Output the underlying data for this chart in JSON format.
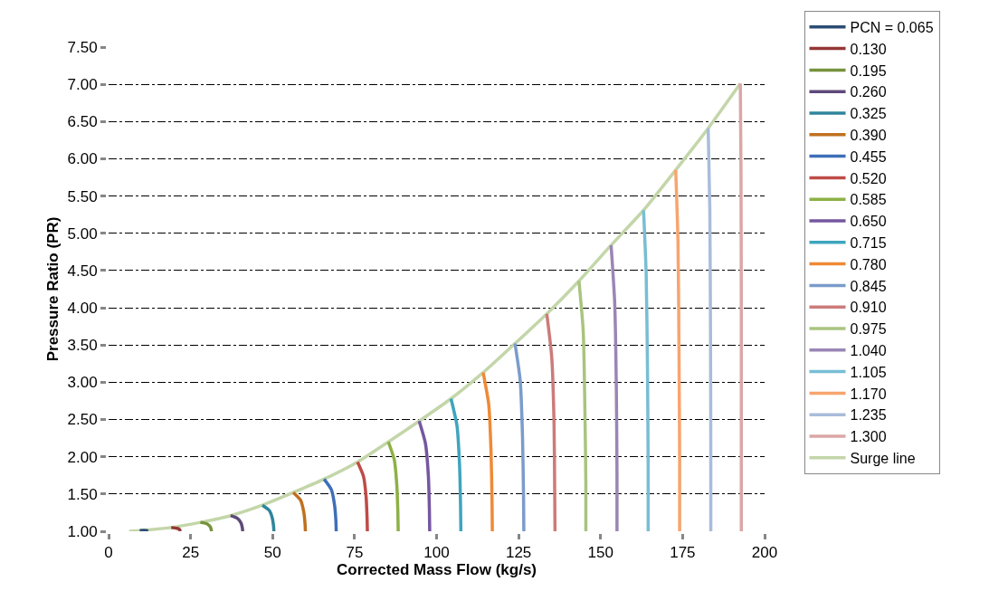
{
  "chart_data": {
    "type": "line",
    "xlabel": "Corrected Mass Flow (kg/s)",
    "ylabel": "Pressure Ratio (PR)",
    "xlim": [
      0,
      200
    ],
    "xticks": [
      0,
      25,
      50,
      75,
      100,
      125,
      150,
      175,
      200
    ],
    "ylim": [
      1.0,
      7.5
    ],
    "yticks": [
      {
        "value": 1.0,
        "label": "1.00"
      },
      {
        "value": 1.5,
        "label": "1.50"
      },
      {
        "value": 2.0,
        "label": "2.00"
      },
      {
        "value": 2.5,
        "label": "2.50"
      },
      {
        "value": 3.0,
        "label": "3.00"
      },
      {
        "value": 3.5,
        "label": "3.50"
      },
      {
        "value": 4.0,
        "label": "4.00"
      },
      {
        "value": 4.5,
        "label": "4.50"
      },
      {
        "value": 5.0,
        "label": "5.00"
      },
      {
        "value": 5.5,
        "label": "5.50"
      },
      {
        "value": 6.0,
        "label": "6.00"
      },
      {
        "value": 6.5,
        "label": "6.50"
      },
      {
        "value": 7.0,
        "label": "7.00"
      },
      {
        "value": 7.5,
        "label": "7.50"
      }
    ],
    "grid": "y",
    "legend": "right",
    "series": [
      {
        "name": "PCN = 0.065",
        "color": "#2c4d75",
        "x": [
          9.5,
          11.5,
          12.0
        ],
        "values": [
          1.01,
          1.01,
          1.0
        ]
      },
      {
        "name": "0.130",
        "color": "#953735",
        "x": [
          19.1,
          20.8,
          21.5,
          21.8,
          21.9
        ],
        "values": [
          1.05,
          1.04,
          1.03,
          1.01,
          1.0
        ]
      },
      {
        "name": "0.195",
        "color": "#76923c",
        "x": [
          28.0,
          30.0,
          31.0,
          31.3,
          31.4
        ],
        "values": [
          1.12,
          1.1,
          1.06,
          1.02,
          1.0
        ]
      },
      {
        "name": "0.260",
        "color": "#5f497a",
        "x": [
          37.2,
          39.4,
          40.4,
          40.8,
          40.9
        ],
        "values": [
          1.21,
          1.17,
          1.11,
          1.04,
          1.0
        ]
      },
      {
        "name": "0.325",
        "color": "#31859c",
        "x": [
          46.9,
          49.0,
          49.9,
          50.3,
          50.4
        ],
        "values": [
          1.35,
          1.28,
          1.18,
          1.07,
          1.0
        ]
      },
      {
        "name": "0.390",
        "color": "#c0701f",
        "x": [
          56.3,
          58.5,
          59.5,
          59.9,
          60.0
        ],
        "values": [
          1.52,
          1.42,
          1.26,
          1.1,
          1.0
        ]
      },
      {
        "name": "0.455",
        "color": "#3e6fb8",
        "x": [
          65.7,
          67.9,
          68.9,
          69.3,
          69.4
        ],
        "values": [
          1.7,
          1.56,
          1.35,
          1.14,
          1.0
        ]
      },
      {
        "name": "0.520",
        "color": "#be4b48",
        "x": [
          75.9,
          77.7,
          78.5,
          78.8,
          78.9
        ],
        "values": [
          1.93,
          1.74,
          1.47,
          1.19,
          1.0
        ]
      },
      {
        "name": "0.585",
        "color": "#8db145",
        "x": [
          85.3,
          87.1,
          87.9,
          88.2,
          88.3
        ],
        "values": [
          2.2,
          1.96,
          1.6,
          1.24,
          1.0
        ]
      },
      {
        "name": "0.650",
        "color": "#7557a0",
        "x": [
          94.7,
          96.6,
          97.5,
          97.8,
          97.9
        ],
        "values": [
          2.48,
          2.18,
          1.74,
          1.3,
          1.0
        ]
      },
      {
        "name": "0.715",
        "color": "#3ea5bf",
        "x": [
          104.4,
          106.2,
          107.0,
          107.3,
          107.4
        ],
        "values": [
          2.78,
          2.42,
          1.89,
          1.36,
          1.0
        ]
      },
      {
        "name": "0.780",
        "color": "#ef8a36",
        "x": [
          114.2,
          115.9,
          116.6,
          116.9,
          117.0
        ],
        "values": [
          3.13,
          2.7,
          2.07,
          1.43,
          1.0
        ]
      },
      {
        "name": "0.845",
        "color": "#7b9ccb",
        "x": [
          123.9,
          125.5,
          126.2,
          126.5,
          126.6
        ],
        "values": [
          3.52,
          3.02,
          2.26,
          1.5,
          1.0
        ]
      },
      {
        "name": "0.910",
        "color": "#cc7b7a",
        "x": [
          133.6,
          135.1,
          135.8,
          136.0,
          136.1
        ],
        "values": [
          3.92,
          3.34,
          2.46,
          1.58,
          1.0
        ]
      },
      {
        "name": "0.975",
        "color": "#a9c47f",
        "x": [
          143.4,
          144.7,
          145.2,
          145.5,
          145.5
        ],
        "values": [
          4.36,
          3.69,
          2.68,
          1.67,
          1.0
        ]
      },
      {
        "name": "1.040",
        "color": "#9a86b5",
        "x": [
          153.2,
          154.3,
          154.8,
          155.0,
          155.0
        ],
        "values": [
          4.84,
          4.07,
          2.92,
          1.77,
          1.0
        ]
      },
      {
        "name": "1.105",
        "color": "#78bed4",
        "x": [
          163.1,
          163.9,
          164.3,
          164.5,
          164.5
        ],
        "values": [
          5.31,
          4.45,
          3.16,
          1.86,
          1.0
        ]
      },
      {
        "name": "1.170",
        "color": "#f8a46e",
        "x": [
          172.9,
          173.6,
          173.9,
          174.1,
          174.1
        ],
        "values": [
          5.85,
          4.88,
          3.43,
          1.97,
          1.0
        ]
      },
      {
        "name": "1.235",
        "color": "#a9bcdb",
        "x": [
          182.8,
          183.3,
          183.5,
          183.6,
          183.6
        ],
        "values": [
          6.41,
          5.33,
          3.71,
          2.08,
          1.0
        ]
      },
      {
        "name": "1.300",
        "color": "#dba7a6",
        "x": [
          192.6,
          192.8,
          192.9,
          192.9,
          192.9
        ],
        "values": [
          7.01,
          5.81,
          4.01,
          2.2,
          1.0
        ]
      },
      {
        "name": "Surge line",
        "color": "#c3d6a9",
        "x": [
          6.3,
          9.5,
          19.1,
          28.0,
          37.2,
          46.9,
          56.3,
          65.7,
          75.9,
          85.3,
          94.7,
          104.4,
          114.2,
          123.9,
          133.6,
          143.4,
          153.2,
          163.1,
          172.9,
          182.8,
          192.6
        ],
        "values": [
          1.0,
          1.01,
          1.05,
          1.12,
          1.21,
          1.35,
          1.52,
          1.7,
          1.93,
          2.2,
          2.48,
          2.78,
          3.13,
          3.52,
          3.92,
          4.36,
          4.84,
          5.31,
          5.85,
          6.41,
          7.01
        ]
      }
    ]
  }
}
